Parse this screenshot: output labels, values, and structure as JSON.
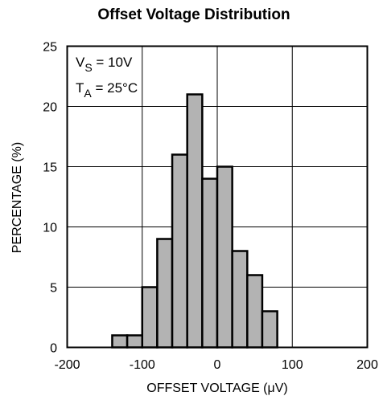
{
  "chart_data": {
    "type": "bar",
    "title": "Offset Voltage Distribution",
    "xlabel": "OFFSET VOLTAGE (μV)",
    "ylabel": "PERCENTAGE (%)",
    "xlim": [
      -200,
      200
    ],
    "ylim": [
      0,
      25
    ],
    "xticks": [
      "-200",
      "-100",
      "0",
      "100",
      "200"
    ],
    "yticks": [
      "0",
      "5",
      "10",
      "15",
      "20",
      "25"
    ],
    "xtick_values": [
      -200,
      -100,
      0,
      100,
      200
    ],
    "ytick_values": [
      0,
      5,
      10,
      15,
      20,
      25
    ],
    "grid": true,
    "bin_width": 20,
    "bars": [
      {
        "x0": -140,
        "x1": -120,
        "value": 1
      },
      {
        "x0": -120,
        "x1": -100,
        "value": 1
      },
      {
        "x0": -100,
        "x1": -80,
        "value": 5
      },
      {
        "x0": -80,
        "x1": -60,
        "value": 9
      },
      {
        "x0": -60,
        "x1": -40,
        "value": 16
      },
      {
        "x0": -40,
        "x1": -20,
        "value": 21
      },
      {
        "x0": -20,
        "x1": 0,
        "value": 14
      },
      {
        "x0": 0,
        "x1": 20,
        "value": 15
      },
      {
        "x0": 20,
        "x1": 40,
        "value": 8
      },
      {
        "x0": 40,
        "x1": 60,
        "value": 6
      },
      {
        "x0": 60,
        "x1": 80,
        "value": 3
      }
    ],
    "bar_fill": "#b3b3b3",
    "bar_stroke": "#000000",
    "annotations": [
      {
        "main": "V",
        "sub": "S",
        "rest": " = 10V"
      },
      {
        "main": "T",
        "sub": "A",
        "rest": " = 25°C"
      }
    ]
  }
}
